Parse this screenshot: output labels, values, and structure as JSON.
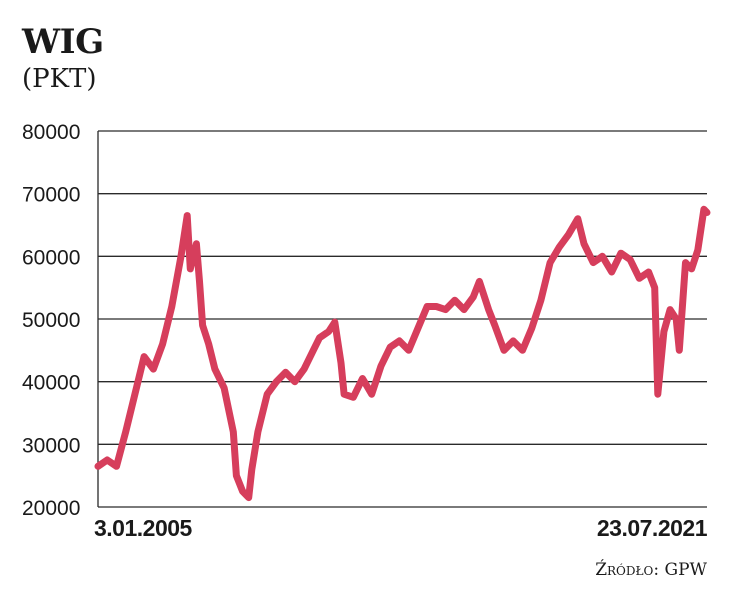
{
  "chart_data": {
    "type": "line",
    "title": "WIG",
    "subtitle": "(PKT)",
    "source": "Źródło: GPW",
    "xlabel": "",
    "ylabel": "",
    "ylim": [
      20000,
      80000
    ],
    "yticks": [
      "80000",
      "70000",
      "60000",
      "50000",
      "40000",
      "30000",
      "20000"
    ],
    "xtick_labels": [
      "3.01.2005",
      "23.07.2021"
    ],
    "grid": true,
    "line_color": "#d63e5c",
    "series": [
      {
        "x": [
          "2005-01",
          "2005-04",
          "2005-07",
          "2005-10",
          "2006-01",
          "2006-04",
          "2006-07",
          "2006-10",
          "2007-01",
          "2007-04",
          "2007-06",
          "2007-07",
          "2007-09",
          "2007-10",
          "2007-11",
          "2008-01",
          "2008-03",
          "2008-06",
          "2008-09",
          "2008-10",
          "2008-12",
          "2009-02",
          "2009-03",
          "2009-05",
          "2009-08",
          "2009-11",
          "2010-02",
          "2010-05",
          "2010-08",
          "2010-11",
          "2011-01",
          "2011-04",
          "2011-06",
          "2011-08",
          "2011-09",
          "2011-12",
          "2012-03",
          "2012-06",
          "2012-09",
          "2012-12",
          "2013-03",
          "2013-06",
          "2013-09",
          "2013-12",
          "2014-03",
          "2014-06",
          "2014-09",
          "2014-12",
          "2015-03",
          "2015-05",
          "2015-08",
          "2015-10",
          "2016-01",
          "2016-04",
          "2016-07",
          "2016-10",
          "2017-01",
          "2017-04",
          "2017-07",
          "2017-10",
          "2018-01",
          "2018-03",
          "2018-06",
          "2018-09",
          "2018-12",
          "2019-03",
          "2019-06",
          "2019-09",
          "2019-12",
          "2020-02",
          "2020-03",
          "2020-05",
          "2020-07",
          "2020-09",
          "2020-10",
          "2020-12",
          "2021-02",
          "2021-04",
          "2021-06",
          "2021-07"
        ],
        "values": [
          26500,
          27500,
          26500,
          32000,
          38000,
          44000,
          42000,
          46000,
          52000,
          60000,
          66500,
          58000,
          62000,
          56000,
          49000,
          46000,
          42000,
          39000,
          32000,
          25000,
          22500,
          21500,
          26000,
          32000,
          38000,
          40000,
          41500,
          40000,
          42000,
          45000,
          47000,
          48000,
          49500,
          43000,
          38000,
          37500,
          40500,
          38000,
          42500,
          45500,
          46500,
          45000,
          48500,
          52000,
          52000,
          51500,
          53000,
          51500,
          53500,
          56000,
          51500,
          49000,
          45000,
          46500,
          45000,
          48500,
          53000,
          59000,
          61500,
          63500,
          66000,
          62000,
          59000,
          60000,
          57500,
          60500,
          59500,
          56500,
          57500,
          55000,
          38000,
          48000,
          51500,
          50000,
          45000,
          59000,
          58000,
          61000,
          67500,
          67000
        ]
      }
    ]
  }
}
